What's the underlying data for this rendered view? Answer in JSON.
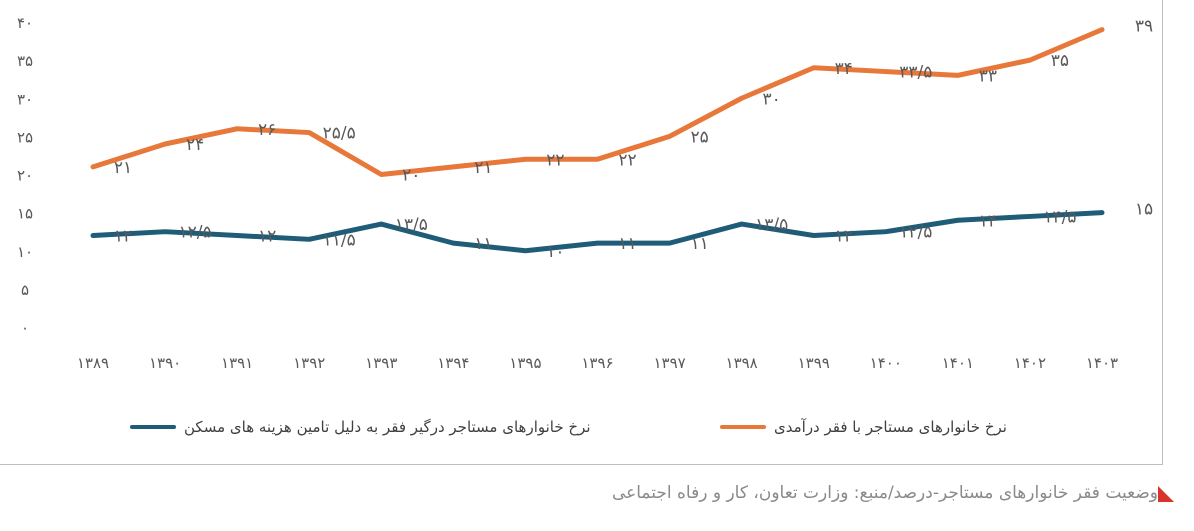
{
  "chart_data": {
    "type": "line",
    "categories": [
      "1389",
      "1390",
      "1391",
      "1392",
      "1393",
      "1394",
      "1395",
      "1396",
      "1397",
      "1398",
      "1399",
      "1400",
      "1401",
      "1402",
      "1403"
    ],
    "category_labels": [
      "۱۳۸۹",
      "۱۳۹۰",
      "۱۳۹۱",
      "۱۳۹۲",
      "۱۳۹۳",
      "۱۳۹۴",
      "۱۳۹۵",
      "۱۳۹۶",
      "۱۳۹۷",
      "۱۳۹۸",
      "۱۳۹۹",
      "۱۴۰۰",
      "۱۴۰۱",
      "۱۴۰۲",
      "۱۴۰۳"
    ],
    "ylim": [
      0,
      40
    ],
    "y_ticks": [
      0,
      5,
      10,
      15,
      20,
      25,
      30,
      35,
      40
    ],
    "y_tick_labels": [
      "۰",
      "۵",
      "۱۰",
      "۱۵",
      "۲۰",
      "۲۵",
      "۳۰",
      "۳۵",
      "۴۰"
    ],
    "grid": false,
    "legend_position": "bottom",
    "series": [
      {
        "name": "نرخ خانوارهای مستاجر درگیر فقر به دلیل تامین هزینه های مسکن",
        "color": "#1f5c78",
        "values": [
          12,
          12.5,
          12,
          11.5,
          13.5,
          11,
          10,
          11,
          11,
          13.5,
          12,
          12.5,
          14,
          14.5,
          15
        ],
        "labels": [
          "۱۲",
          "۱۲/۵",
          "۱۲",
          "۱۱/۵",
          "۱۳/۵",
          "۱۱",
          "۱۰",
          "۱۱",
          "۱۱",
          "۱۳/۵",
          "۱۲",
          "۱۲/۵",
          "۱۴",
          "۱۴/۵",
          "۱۵"
        ]
      },
      {
        "name": "نرخ خانوارهای مستاجر با فقر درآمدی",
        "color": "#e8773a",
        "values": [
          21,
          24,
          26,
          25.5,
          20,
          21,
          22,
          22,
          25,
          30,
          34,
          33.5,
          33,
          35,
          39
        ],
        "labels": [
          "۲۱",
          "۲۴",
          "۲۶",
          "۲۵/۵",
          "۲۰",
          "۲۱",
          "۲۲",
          "۲۲",
          "۲۵",
          "۳۰",
          "۳۴",
          "۳۳/۵",
          "۳۳",
          "۳۵",
          "۳۹"
        ]
      }
    ]
  },
  "caption": "وضعیت فقر خانوارهای مستاجر-درصد/منبع: وزارت تعاون، کار و رفاه اجتماعی",
  "caption_icon": "red-triangle-icon"
}
